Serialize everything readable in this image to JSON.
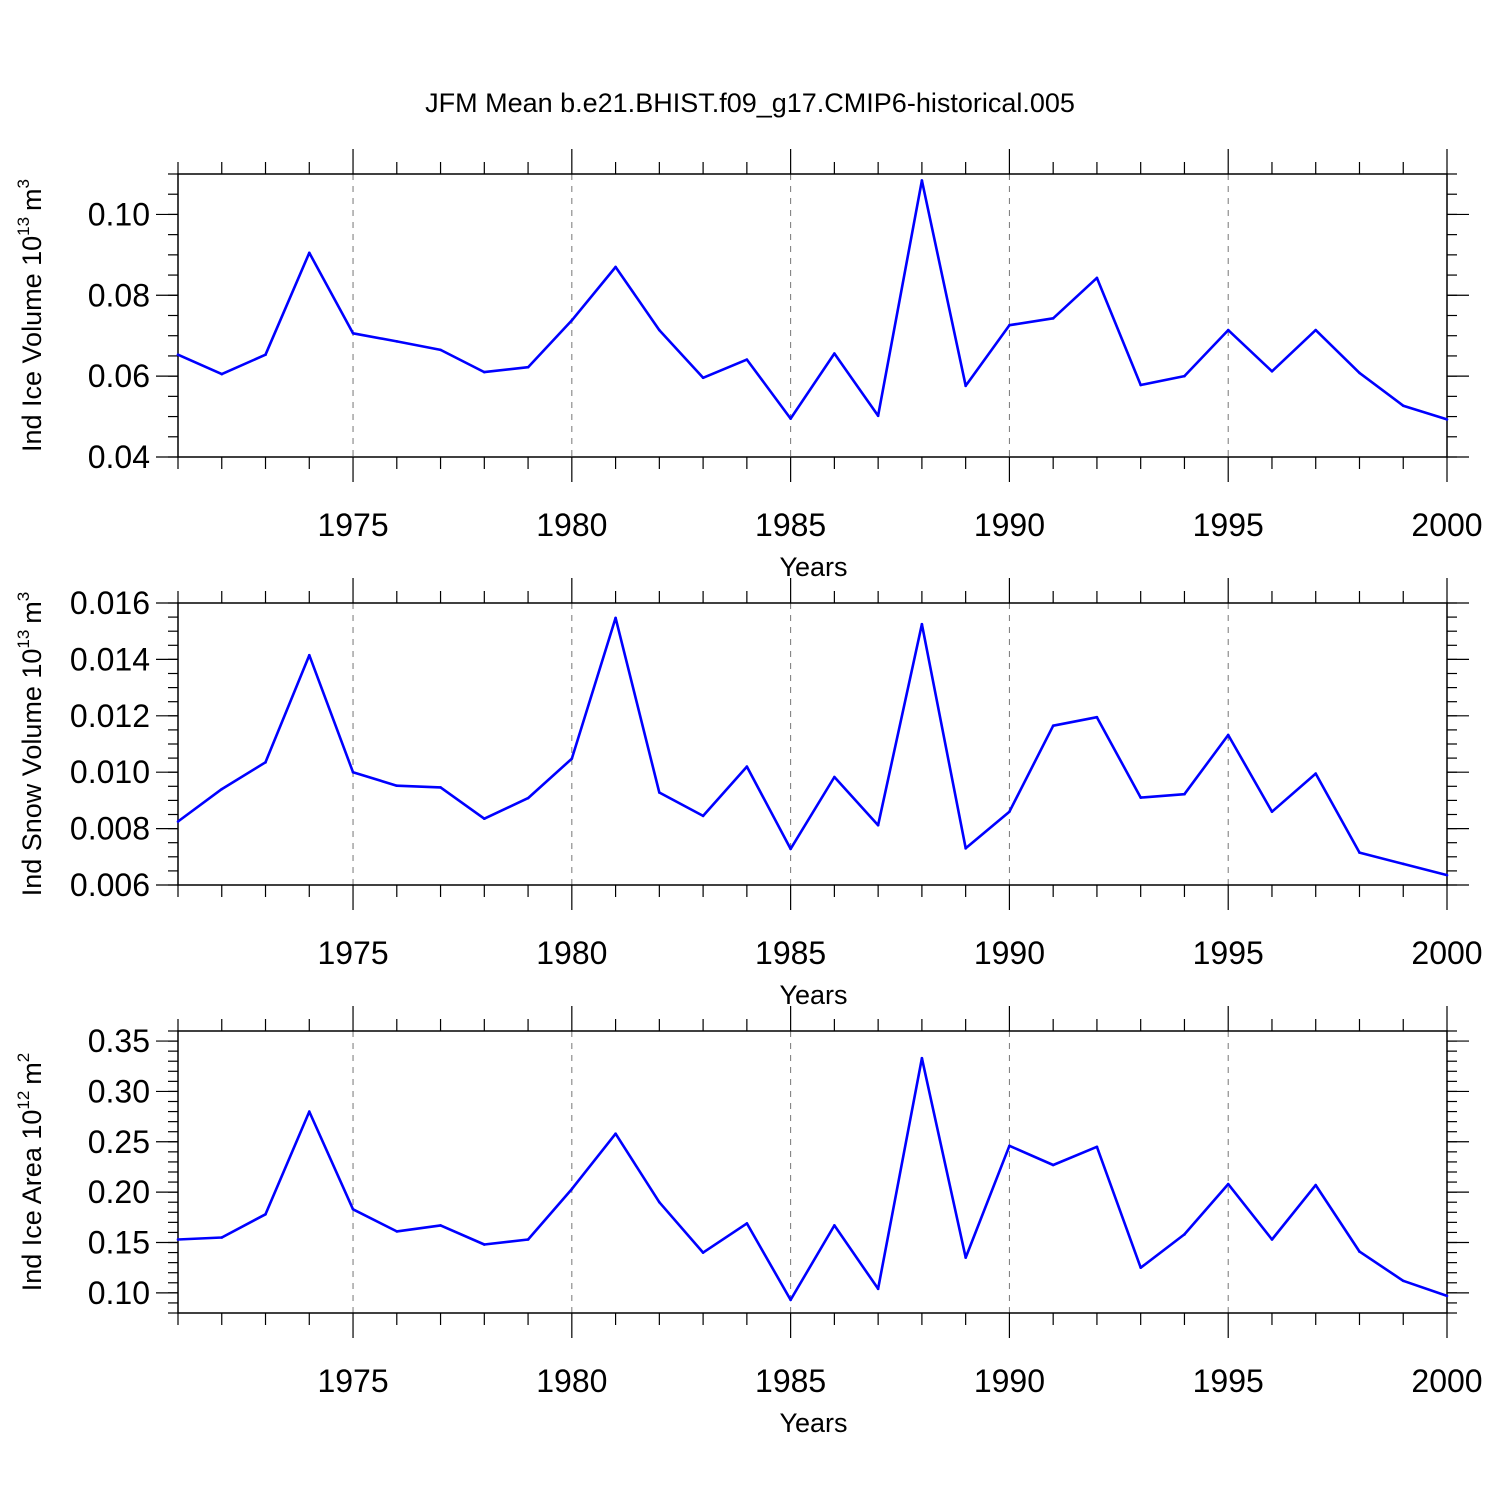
{
  "chart_data": {
    "title": "JFM Mean b.e21.BHIST.f09_g17.CMIP6-historical.005",
    "line_color": "#0000ff",
    "panels": [
      {
        "type": "line",
        "ylabel_main": "Ind Ice Volume 10",
        "ylabel_exp": "13",
        "ylabel_unit": "m",
        "ylabel_unit_exp": "3",
        "xlabel": "Years",
        "xlim": [
          1971,
          2000
        ],
        "ylim": [
          0.04,
          0.11
        ],
        "yticks": [
          0.04,
          0.06,
          0.08,
          0.1
        ],
        "ytick_labels": [
          "0.04",
          "0.06",
          "0.08",
          "0.10"
        ],
        "y_minor_step": 0.005,
        "xticks": [
          1975,
          1980,
          1985,
          1990,
          1995,
          2000
        ],
        "xtick_labels": [
          "1975",
          "1980",
          "1985",
          "1990",
          "1995",
          "2000"
        ],
        "x": [
          1971,
          1972,
          1973,
          1974,
          1975,
          1976,
          1977,
          1978,
          1979,
          1980,
          1981,
          1982,
          1983,
          1984,
          1985,
          1986,
          1987,
          1988,
          1989,
          1990,
          1991,
          1992,
          1993,
          1994,
          1995,
          1996,
          1997,
          1998,
          1999,
          2000
        ],
        "values": [
          0.0653,
          0.0605,
          0.0653,
          0.0905,
          0.0706,
          0.0686,
          0.0665,
          0.061,
          0.0622,
          0.0738,
          0.087,
          0.0714,
          0.0596,
          0.0641,
          0.0495,
          0.0656,
          0.0502,
          0.1084,
          0.0576,
          0.0726,
          0.0743,
          0.0843,
          0.0578,
          0.06,
          0.0714,
          0.0612,
          0.0714,
          0.0608,
          0.0527,
          0.0493
        ]
      },
      {
        "type": "line",
        "ylabel_main": "Ind Snow Volume 10",
        "ylabel_exp": "13",
        "ylabel_unit": "m",
        "ylabel_unit_exp": "3",
        "xlabel": "Years",
        "xlim": [
          1971,
          2000
        ],
        "ylim": [
          0.006,
          0.016
        ],
        "yticks": [
          0.006,
          0.008,
          0.01,
          0.012,
          0.014,
          0.016
        ],
        "ytick_labels": [
          "0.006",
          "0.008",
          "0.010",
          "0.012",
          "0.014",
          "0.016"
        ],
        "y_minor_step": 0.0005,
        "xticks": [
          1975,
          1980,
          1985,
          1990,
          1995,
          2000
        ],
        "xtick_labels": [
          "1975",
          "1980",
          "1985",
          "1990",
          "1995",
          "2000"
        ],
        "x": [
          1971,
          1972,
          1973,
          1974,
          1975,
          1976,
          1977,
          1978,
          1979,
          1980,
          1981,
          1982,
          1983,
          1984,
          1985,
          1986,
          1987,
          1988,
          1989,
          1990,
          1991,
          1992,
          1993,
          1994,
          1995,
          1996,
          1997,
          1998,
          1999,
          2000
        ],
        "values": [
          0.00825,
          0.0094,
          0.01035,
          0.01415,
          0.01,
          0.00952,
          0.00946,
          0.00835,
          0.00908,
          0.01048,
          0.01547,
          0.00928,
          0.00845,
          0.0102,
          0.00728,
          0.00983,
          0.00812,
          0.01525,
          0.0073,
          0.0086,
          0.01165,
          0.01195,
          0.0091,
          0.00922,
          0.01132,
          0.0086,
          0.00995,
          0.00715,
          0.00675,
          0.00635
        ]
      },
      {
        "type": "line",
        "ylabel_main": "Ind Ice Area 10",
        "ylabel_exp": "12",
        "ylabel_unit": "m",
        "ylabel_unit_exp": "2",
        "xlabel": "Years",
        "xlim": [
          1971,
          2000
        ],
        "ylim": [
          0.08,
          0.36
        ],
        "yticks": [
          0.1,
          0.15,
          0.2,
          0.25,
          0.3,
          0.35
        ],
        "ytick_labels": [
          "0.10",
          "0.15",
          "0.20",
          "0.25",
          "0.30",
          "0.35"
        ],
        "y_minor_step": 0.01,
        "xticks": [
          1975,
          1980,
          1985,
          1990,
          1995,
          2000
        ],
        "xtick_labels": [
          "1975",
          "1980",
          "1985",
          "1990",
          "1995",
          "2000"
        ],
        "x": [
          1971,
          1972,
          1973,
          1974,
          1975,
          1976,
          1977,
          1978,
          1979,
          1980,
          1981,
          1982,
          1983,
          1984,
          1985,
          1986,
          1987,
          1988,
          1989,
          1990,
          1991,
          1992,
          1993,
          1994,
          1995,
          1996,
          1997,
          1998,
          1999,
          2000
        ],
        "values": [
          0.153,
          0.155,
          0.178,
          0.28,
          0.183,
          0.161,
          0.167,
          0.148,
          0.153,
          0.203,
          0.258,
          0.19,
          0.14,
          0.169,
          0.093,
          0.167,
          0.104,
          0.333,
          0.135,
          0.246,
          0.227,
          0.245,
          0.125,
          0.158,
          0.208,
          0.153,
          0.207,
          0.141,
          0.112,
          0.097
        ]
      }
    ]
  }
}
